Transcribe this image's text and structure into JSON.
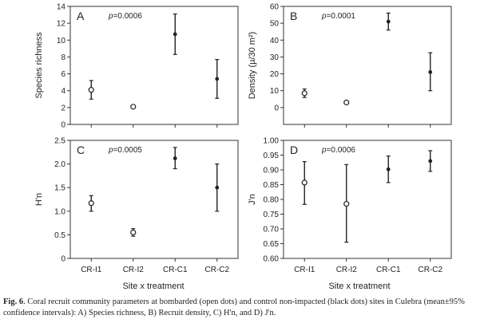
{
  "chart_data": [
    {
      "type": "scatter",
      "panel_label": "A",
      "annotation": "p=0.0006",
      "ylabel": "Species richness",
      "xlabel": "",
      "ylim": [
        0,
        14
      ],
      "yticks": [
        0,
        2,
        4,
        6,
        8,
        10,
        12,
        14
      ],
      "categories": [
        "CR-I1",
        "CR-I2",
        "CR-C1",
        "CR-C2"
      ],
      "mean": [
        4.1,
        2.1,
        10.7,
        5.4
      ],
      "lower": [
        3.0,
        2.0,
        8.3,
        3.1
      ],
      "upper": [
        5.2,
        2.2,
        13.1,
        7.7
      ],
      "marker": [
        "open",
        "open",
        "filled",
        "filled"
      ],
      "show_xtick_labels": false
    },
    {
      "type": "scatter",
      "panel_label": "B",
      "annotation": "p=0.0001",
      "ylabel": "Density (µ/30 m²)",
      "xlabel": "",
      "ylim": [
        -10,
        60
      ],
      "yticks": [
        0,
        10,
        20,
        30,
        40,
        50,
        60
      ],
      "categories": [
        "CR-I1",
        "CR-I2",
        "CR-C1",
        "CR-C2"
      ],
      "mean": [
        8.5,
        3.0,
        51.0,
        21.0
      ],
      "lower": [
        6.0,
        2.5,
        46.0,
        10.0
      ],
      "upper": [
        11.0,
        3.5,
        56.0,
        32.5
      ],
      "marker": [
        "open",
        "open",
        "filled",
        "filled"
      ],
      "show_xtick_labels": false
    },
    {
      "type": "scatter",
      "panel_label": "C",
      "annotation": "p=0.0005",
      "ylabel": "H'n",
      "xlabel": "",
      "ylim": [
        0,
        2.5
      ],
      "yticks": [
        0,
        0.5,
        1.0,
        1.5,
        2.0,
        2.5
      ],
      "ytick_labels": [
        "0",
        "0.5",
        "1.0",
        "1.5",
        "2.0",
        "2.5"
      ],
      "categories": [
        "CR-I1",
        "CR-I2",
        "CR-C1",
        "CR-C2"
      ],
      "mean": [
        1.17,
        0.55,
        2.12,
        1.5
      ],
      "lower": [
        1.0,
        0.47,
        1.9,
        1.0
      ],
      "upper": [
        1.33,
        0.63,
        2.35,
        2.0
      ],
      "marker": [
        "open",
        "open",
        "filled",
        "filled"
      ],
      "show_xtick_labels": true
    },
    {
      "type": "scatter",
      "panel_label": "D",
      "annotation": "p=0.0006",
      "ylabel": "J'n",
      "xlabel": "",
      "ylim": [
        0.6,
        1.0
      ],
      "yticks": [
        0.6,
        0.65,
        0.7,
        0.75,
        0.8,
        0.85,
        0.9,
        0.95,
        1.0
      ],
      "ytick_labels": [
        "0.60",
        "0.65",
        "0.70",
        "0.75",
        "0.80",
        "0.85",
        "0.90",
        "0.95",
        "1.00"
      ],
      "categories": [
        "CR-I1",
        "CR-I2",
        "CR-C1",
        "CR-C2"
      ],
      "mean": [
        0.857,
        0.785,
        0.902,
        0.93
      ],
      "lower": [
        0.783,
        0.655,
        0.857,
        0.895
      ],
      "upper": [
        0.928,
        0.918,
        0.947,
        0.965
      ],
      "marker": [
        "open",
        "open",
        "filled",
        "filled"
      ],
      "show_xtick_labels": true
    }
  ],
  "shared_xlabel": "Site x treatment",
  "caption": {
    "label": "Fig. 6",
    "text": ". Coral recruit community parameters at bombarded (open dots) and control non-impacted (black dots) sites in Culebra (mean±95% confidence intervals): A) Species richness, B) Recruit density, C) H'n, and D) J'n."
  },
  "colors": {
    "ink": "#222222",
    "axis": "#333333"
  }
}
